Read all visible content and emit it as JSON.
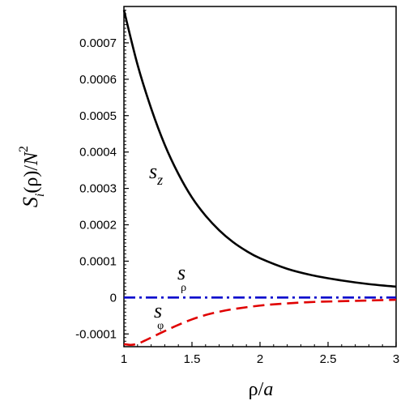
{
  "chart_data": {
    "type": "line",
    "xlabel_parts": {
      "rho": "ρ",
      "slash": "/",
      "a": "a"
    },
    "ylabel_parts": {
      "s": "S",
      "i": "i",
      "open": "(",
      "rho": "ρ",
      "close": ")",
      "slash": "/",
      "n": "N",
      "exp": "2"
    },
    "xlim": [
      1,
      3
    ],
    "ylim": [
      -0.000135,
      0.0008
    ],
    "x_ticks": [
      1,
      1.5,
      2,
      2.5,
      3
    ],
    "x_tick_labels": [
      "1",
      "1.5",
      "2",
      "2.5",
      "3"
    ],
    "y_ticks": [
      -0.0001,
      0,
      0.0001,
      0.0002,
      0.0003,
      0.0004,
      0.0005,
      0.0006,
      0.0007
    ],
    "y_tick_labels": [
      "-0.0001",
      "0",
      "0.0001",
      "0.0002",
      "0.0003",
      "0.0004",
      "0.0005",
      "0.0006",
      "0.0007"
    ],
    "grid": false,
    "legend": "none",
    "series": [
      {
        "label_main": "s",
        "label_sub": "z",
        "color": "#000000",
        "dash": "solid",
        "x": [
          1.0,
          1.1,
          1.2,
          1.3,
          1.4,
          1.5,
          1.6,
          1.7,
          1.8,
          1.9,
          2.0,
          2.2,
          2.4,
          2.6,
          2.8,
          3.0
        ],
        "y": [
          0.00079,
          0.00064,
          0.00052,
          0.00042,
          0.00034,
          0.000275,
          0.000225,
          0.000185,
          0.000153,
          0.000128,
          0.000108,
          7.9e-05,
          6e-05,
          4.7e-05,
          3.7e-05,
          3e-05
        ]
      },
      {
        "label_main": "s",
        "label_sub": "ρ",
        "color": "#0000cc",
        "dash": "dashdot",
        "x": [
          1.0,
          3.0
        ],
        "y": [
          0,
          0
        ]
      },
      {
        "label_main": "s",
        "label_sub": "φ",
        "color": "#e00000",
        "dash": "dashed",
        "x": [
          1.0,
          1.05,
          1.1,
          1.15,
          1.2,
          1.3,
          1.4,
          1.5,
          1.6,
          1.7,
          1.8,
          2.0,
          2.2,
          2.4,
          2.6,
          2.8,
          3.0
        ],
        "y": [
          -0.000128,
          -0.00013,
          -0.000127,
          -0.000119,
          -0.00011,
          -9.2e-05,
          -7.5e-05,
          -6e-05,
          -4.8e-05,
          -3.9e-05,
          -3.2e-05,
          -2.2e-05,
          -1.6e-05,
          -1.2e-05,
          -1e-05,
          -8e-06,
          -6e-06
        ]
      }
    ]
  }
}
